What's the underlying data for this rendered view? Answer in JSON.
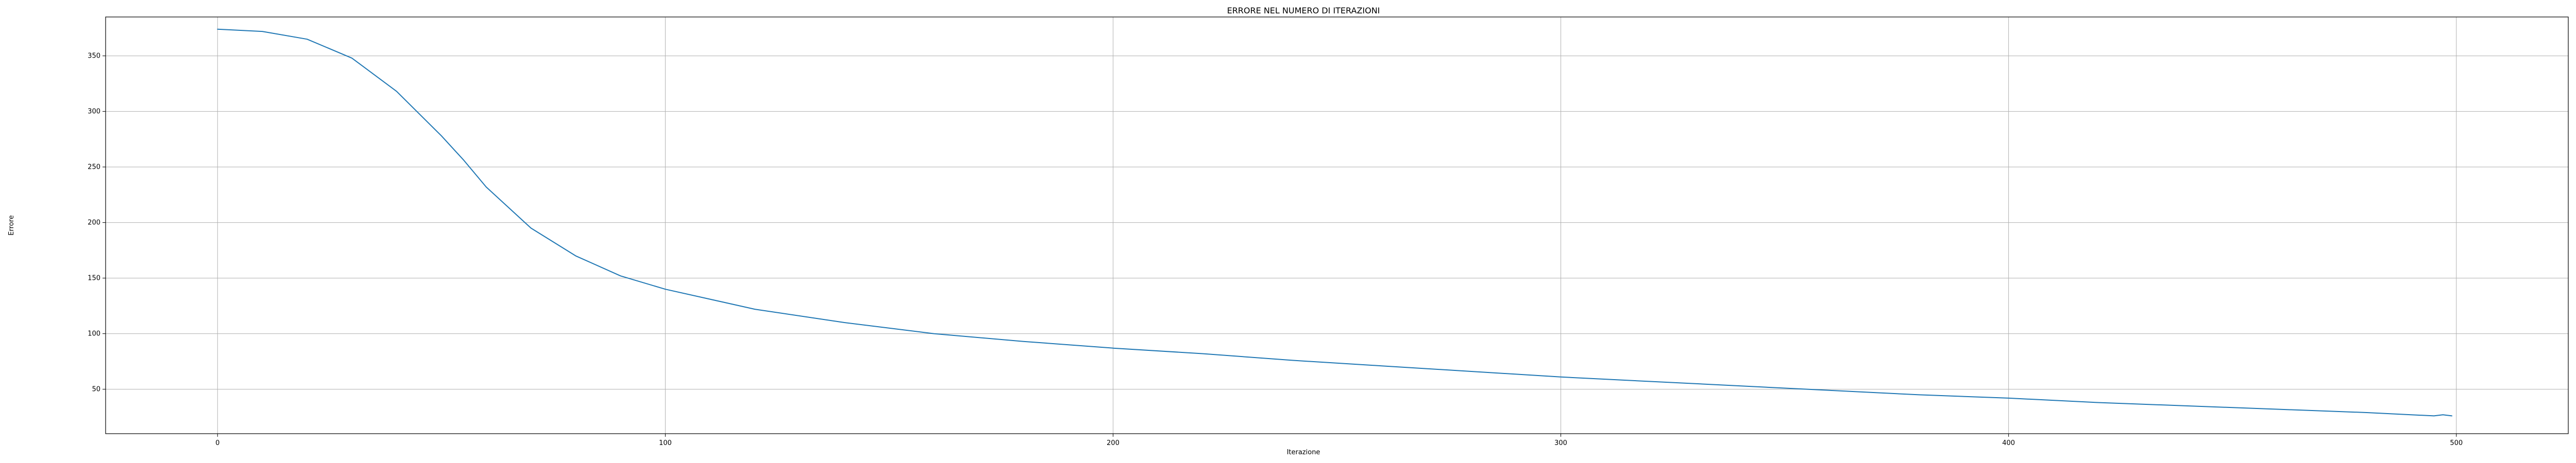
{
  "chart_data": {
    "type": "line",
    "title": "ERRORE NEL NUMERO DI ITERAZIONI",
    "xlabel": "Iterazione",
    "ylabel": "Errore",
    "xlim": [
      -25,
      525
    ],
    "ylim": [
      10,
      385
    ],
    "xticks": [
      0,
      100,
      200,
      300,
      400,
      500
    ],
    "yticks": [
      50,
      100,
      150,
      200,
      250,
      300,
      350
    ],
    "grid": true,
    "series": [
      {
        "color": "#1f77b4",
        "x": [
          0,
          10,
          20,
          30,
          40,
          50,
          55,
          60,
          70,
          80,
          90,
          100,
          120,
          140,
          160,
          180,
          200,
          220,
          240,
          260,
          280,
          300,
          320,
          340,
          360,
          380,
          400,
          420,
          440,
          460,
          480,
          495,
          497,
          499
        ],
        "y": [
          374,
          372,
          365,
          348,
          318,
          278,
          256,
          232,
          195,
          170,
          152,
          140,
          122,
          110,
          100,
          93,
          87,
          82,
          76,
          71,
          66,
          61,
          57,
          53,
          49,
          45,
          42,
          38,
          35,
          32,
          29,
          26,
          27,
          26
        ]
      }
    ]
  }
}
